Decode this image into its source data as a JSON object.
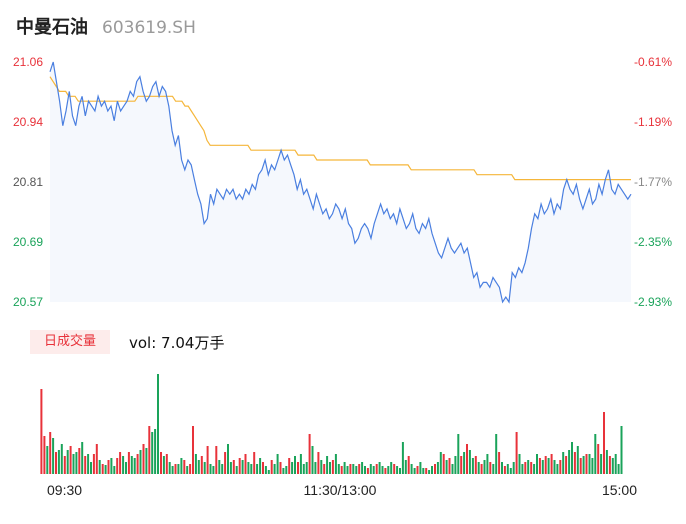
{
  "header": {
    "name": "中曼石油",
    "code": "603619.SH"
  },
  "volume": {
    "tab_label": "日成交量",
    "vol_label": "vol: 7.04万手"
  },
  "colors": {
    "price_line": "#4a7fe0",
    "avg_line": "#f5b63a",
    "up": "#e8323a",
    "down": "#1aa35a",
    "fill": "#f5f8fd"
  },
  "chart_data": [
    {
      "type": "line",
      "y_ticks": [
        "21.06",
        "20.94",
        "20.81",
        "20.69",
        "20.57"
      ],
      "y_tick_colors": [
        "#e8323a",
        "#e8323a",
        "#555555",
        "#1aa35a",
        "#1aa35a"
      ],
      "pct_ticks": [
        "-0.61%",
        "-1.19%",
        "-1.77%",
        "-2.35%",
        "-2.93%"
      ],
      "pct_tick_colors": [
        "#e8323a",
        "#e8323a",
        "#888888",
        "#1aa35a",
        "#1aa35a"
      ],
      "ylim": [
        20.57,
        21.06
      ],
      "x_labels": [
        "09:30",
        "11:30/13:00",
        "15:00"
      ],
      "series": [
        {
          "values": [
            21.04,
            21.06,
            21.02,
            20.98,
            20.93,
            20.96,
            21.0,
            20.95,
            20.93,
            20.97,
            20.99,
            20.95,
            20.98,
            20.97,
            20.96,
            20.99,
            20.97,
            20.98,
            20.96,
            20.97,
            20.94,
            20.98,
            20.96,
            20.97,
            20.98,
            21.0,
            20.99,
            21.02,
            21.03,
            21.0,
            20.98,
            20.99,
            21.01,
            21.02,
            20.99,
            21.01,
            21.0,
            20.97,
            20.92,
            20.89,
            20.91,
            20.86,
            20.84,
            20.86,
            20.85,
            20.82,
            20.79,
            20.77,
            20.73,
            20.74,
            20.79,
            20.77,
            20.8,
            20.79,
            20.78,
            20.8,
            20.79,
            20.8,
            20.78,
            20.79,
            20.78,
            20.8,
            20.79,
            20.81,
            20.8,
            20.83,
            20.84,
            20.86,
            20.83,
            20.85,
            20.84,
            20.86,
            20.88,
            20.86,
            20.87,
            20.85,
            20.83,
            20.8,
            20.82,
            20.79,
            20.8,
            20.78,
            20.76,
            20.79,
            20.77,
            20.75,
            20.76,
            20.74,
            20.75,
            20.77,
            20.76,
            20.74,
            20.76,
            20.73,
            20.72,
            20.69,
            20.7,
            20.72,
            20.73,
            20.72,
            20.7,
            20.73,
            20.75,
            20.77,
            20.75,
            20.76,
            20.74,
            20.75,
            20.73,
            20.76,
            20.74,
            20.72,
            20.73,
            20.75,
            20.72,
            20.71,
            20.73,
            20.72,
            20.74,
            20.71,
            20.69,
            20.67,
            20.66,
            20.68,
            20.7,
            20.68,
            20.67,
            20.68,
            20.69,
            20.67,
            20.68,
            20.65,
            20.62,
            20.63,
            20.6,
            20.61,
            20.61,
            20.6,
            20.62,
            20.61,
            20.6,
            20.57,
            20.58,
            20.57,
            20.63,
            20.62,
            20.64,
            20.63,
            20.65,
            20.68,
            20.72,
            20.75,
            20.74,
            20.77,
            20.75,
            20.76,
            20.78,
            20.75,
            20.77,
            20.76,
            20.8,
            20.82,
            20.8,
            20.79,
            20.81,
            20.78,
            20.76,
            20.78,
            20.8,
            20.77,
            20.78,
            20.81,
            20.79,
            20.82,
            20.84,
            20.8,
            20.79,
            20.81,
            20.8,
            20.79,
            20.78,
            20.79
          ],
          "color": "#4a7fe0"
        },
        {
          "values": [
            21.03,
            21.02,
            21.01,
            21.0,
            21.0,
            21.0,
            20.99,
            20.99,
            20.99,
            20.98,
            20.98,
            20.98,
            20.98,
            20.98,
            20.98,
            20.98,
            20.98,
            20.98,
            20.98,
            20.98,
            20.98,
            20.98,
            20.98,
            20.98,
            20.98,
            20.98,
            20.98,
            20.98,
            20.99,
            20.99,
            20.99,
            20.99,
            20.99,
            20.99,
            20.99,
            20.99,
            20.99,
            20.99,
            20.99,
            20.99,
            20.98,
            20.98,
            20.98,
            20.97,
            20.97,
            20.96,
            20.95,
            20.94,
            20.93,
            20.92,
            20.9,
            20.89,
            20.89,
            20.89,
            20.89,
            20.89,
            20.89,
            20.89,
            20.89,
            20.89,
            20.89,
            20.89,
            20.89,
            20.89,
            20.88,
            20.88,
            20.88,
            20.88,
            20.88,
            20.88,
            20.88,
            20.88,
            20.88,
            20.88,
            20.88,
            20.88,
            20.88,
            20.88,
            20.88,
            20.87,
            20.87,
            20.87,
            20.87,
            20.87,
            20.87,
            20.86,
            20.86,
            20.86,
            20.86,
            20.86,
            20.86,
            20.86,
            20.86,
            20.86,
            20.86,
            20.86,
            20.86,
            20.86,
            20.86,
            20.86,
            20.86,
            20.86,
            20.85,
            20.85,
            20.85,
            20.85,
            20.85,
            20.85,
            20.85,
            20.85,
            20.85,
            20.85,
            20.85,
            20.85,
            20.85,
            20.84,
            20.84,
            20.84,
            20.84,
            20.84,
            20.84,
            20.84,
            20.84,
            20.84,
            20.84,
            20.84,
            20.84,
            20.84,
            20.84,
            20.84,
            20.84,
            20.84,
            20.84,
            20.84,
            20.84,
            20.84,
            20.83,
            20.83,
            20.83,
            20.83,
            20.83,
            20.83,
            20.83,
            20.83,
            20.83,
            20.83,
            20.83,
            20.83,
            20.82,
            20.82,
            20.82,
            20.82,
            20.82,
            20.82,
            20.82,
            20.82,
            20.82,
            20.82,
            20.82,
            20.82,
            20.82,
            20.82,
            20.82,
            20.82,
            20.82,
            20.82,
            20.82,
            20.82,
            20.82,
            20.82,
            20.82,
            20.82,
            20.82,
            20.82,
            20.82,
            20.82,
            20.82,
            20.82,
            20.82,
            20.82,
            20.82,
            20.82,
            20.82,
            20.82,
            20.82,
            20.82
          ],
          "color": "#f5b63a"
        }
      ]
    },
    {
      "type": "bar",
      "ylim": [
        0,
        100
      ],
      "values": [
        85,
        38,
        28,
        42,
        36,
        22,
        24,
        30,
        18,
        24,
        28,
        20,
        22,
        26,
        32,
        18,
        20,
        12,
        20,
        30,
        14,
        10,
        9,
        14,
        16,
        8,
        16,
        22,
        18,
        12,
        22,
        18,
        16,
        20,
        24,
        30,
        26,
        48,
        42,
        45,
        100,
        22,
        18,
        20,
        12,
        8,
        10,
        10,
        16,
        14,
        8,
        10,
        48,
        20,
        14,
        18,
        12,
        28,
        10,
        8,
        28,
        14,
        10,
        22,
        30,
        12,
        14,
        8,
        16,
        14,
        20,
        12,
        10,
        22,
        10,
        16,
        12,
        8,
        4,
        14,
        10,
        20,
        12,
        6,
        8,
        16,
        12,
        18,
        12,
        20,
        10,
        12,
        40,
        28,
        12,
        22,
        14,
        10,
        18,
        12,
        14,
        20,
        10,
        8,
        12,
        8,
        10,
        10,
        8,
        10,
        12,
        8,
        6,
        10,
        8,
        10,
        12,
        8,
        6,
        8,
        12,
        10,
        8,
        6,
        32,
        14,
        18,
        10,
        6,
        8,
        12,
        6,
        6,
        4,
        8,
        10,
        12,
        22,
        20,
        14,
        16,
        10,
        18,
        40,
        18,
        22,
        30,
        24,
        16,
        18,
        12,
        10,
        14,
        20,
        12,
        10,
        40,
        22,
        12,
        8,
        10,
        6,
        12,
        42,
        20,
        10,
        12,
        14,
        12,
        10,
        20,
        16,
        14,
        18,
        16,
        20,
        14,
        10,
        14,
        22,
        18,
        24,
        32,
        22,
        28,
        16,
        18,
        20,
        20,
        16,
        40,
        30,
        20,
        62,
        24,
        18,
        16,
        20,
        10,
        48
      ],
      "colors": [
        "up",
        "up",
        "down",
        "up",
        "down",
        "up",
        "down",
        "down",
        "up",
        "down",
        "up",
        "down",
        "down",
        "up",
        "down",
        "up",
        "down",
        "down",
        "up",
        "up",
        "down",
        "up",
        "down",
        "up",
        "down",
        "down",
        "up",
        "up",
        "down",
        "down",
        "up",
        "down",
        "down",
        "up",
        "down",
        "up",
        "down",
        "up",
        "down",
        "down",
        "down",
        "up",
        "down",
        "up",
        "down",
        "down",
        "up",
        "down",
        "down",
        "up",
        "down",
        "up",
        "up",
        "down",
        "down",
        "up",
        "down",
        "up",
        "down",
        "down",
        "up",
        "down",
        "down",
        "up",
        "down",
        "down",
        "up",
        "down",
        "up",
        "down",
        "up",
        "down",
        "down",
        "up",
        "down",
        "down",
        "up",
        "down",
        "down",
        "up",
        "down",
        "down",
        "up",
        "down",
        "down",
        "up",
        "down",
        "down",
        "up",
        "down",
        "down",
        "down",
        "up",
        "down",
        "down",
        "up",
        "down",
        "up",
        "down",
        "down",
        "up",
        "down",
        "down",
        "up",
        "down",
        "down",
        "up",
        "down",
        "down",
        "up",
        "down",
        "down",
        "up",
        "down",
        "down",
        "up",
        "down",
        "down",
        "up",
        "down",
        "down",
        "up",
        "down",
        "down",
        "down",
        "down",
        "up",
        "down",
        "down",
        "up",
        "down",
        "down",
        "up",
        "down",
        "down",
        "up",
        "down",
        "down",
        "up",
        "down",
        "up",
        "down",
        "down",
        "down",
        "up",
        "down",
        "up",
        "down",
        "down",
        "up",
        "down",
        "up",
        "down",
        "down",
        "up",
        "down",
        "down",
        "up",
        "down",
        "up",
        "down",
        "down",
        "down",
        "up",
        "down",
        "down",
        "up",
        "down",
        "up",
        "down",
        "down",
        "up",
        "down",
        "up",
        "down",
        "up",
        "down",
        "down",
        "up",
        "down",
        "up",
        "down",
        "down",
        "up",
        "down",
        "up",
        "down",
        "up",
        "down",
        "down",
        "down",
        "up",
        "down",
        "up",
        "down",
        "up"
      ]
    }
  ]
}
